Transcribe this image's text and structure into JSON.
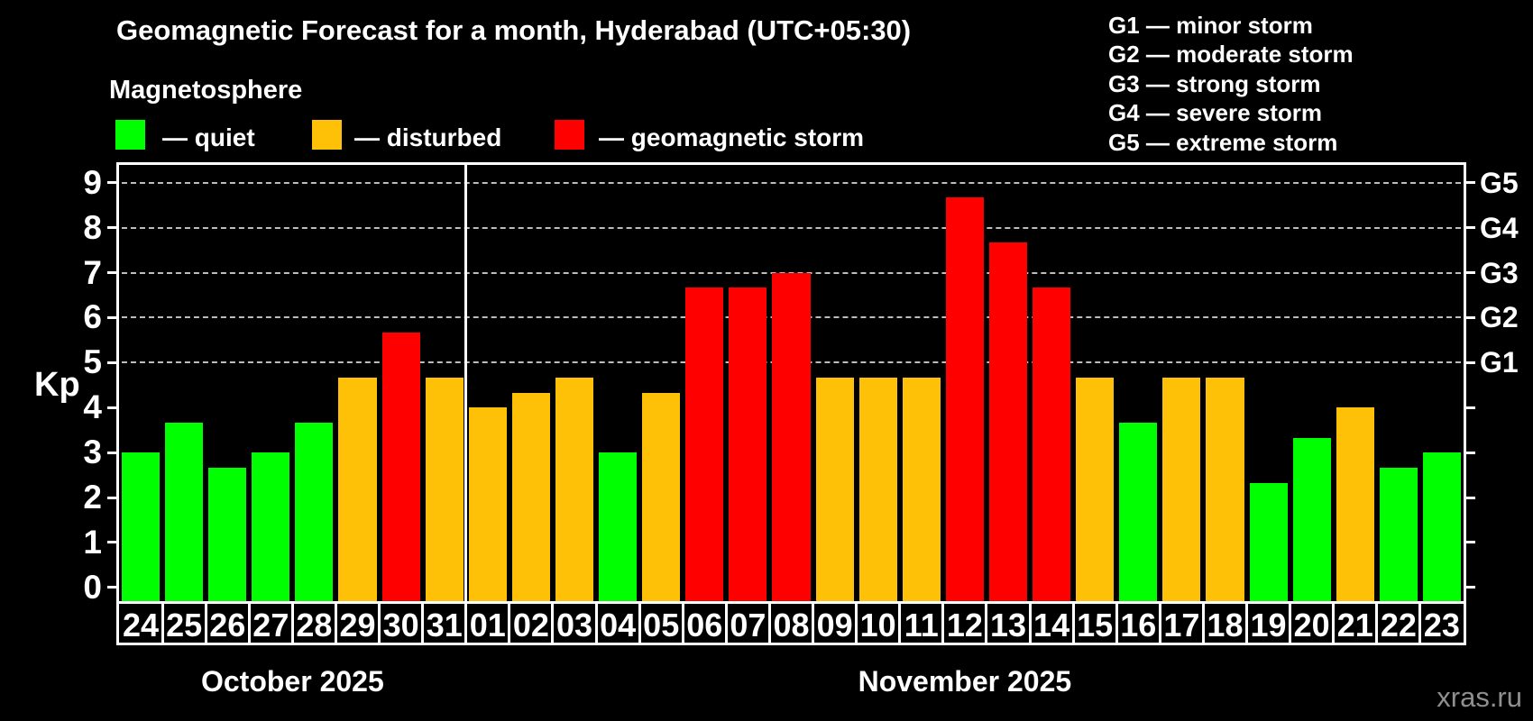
{
  "header": {
    "title": "Geomagnetic Forecast for a month, Hyderabad (UTC+05:30)",
    "subtitle": "Magnetosphere"
  },
  "legend": {
    "items": [
      {
        "label": "— quiet",
        "status": "quiet",
        "color": "#00ff00"
      },
      {
        "label": "— disturbed",
        "status": "disturbed",
        "color": "#ffc107"
      },
      {
        "label": "— geomagnetic storm",
        "status": "storm",
        "color": "#ff0000"
      }
    ]
  },
  "g_scale_legend": {
    "items": [
      {
        "label": "G1 — minor storm"
      },
      {
        "label": "G2 — moderate storm"
      },
      {
        "label": "G3 — strong storm"
      },
      {
        "label": "G4 — severe storm"
      },
      {
        "label": "G5 — extreme storm"
      }
    ]
  },
  "watermark": "xras.ru",
  "chart_data": {
    "type": "bar",
    "title": "Geomagnetic Forecast for a month, Hyderabad (UTC+05:30)",
    "ylabel": "Kp",
    "ylim": [
      0,
      9.7
    ],
    "yticks": [
      0,
      1,
      2,
      3,
      4,
      5,
      6,
      7,
      8,
      9
    ],
    "gridlines_at_kp": [
      5,
      6,
      7,
      8,
      9
    ],
    "grid": "dashed horizontal at storm levels only",
    "legend_position": "top-left",
    "right_axis_labels": [
      {
        "label": "G1",
        "kp": 5
      },
      {
        "label": "G2",
        "kp": 6
      },
      {
        "label": "G3",
        "kp": 7
      },
      {
        "label": "G4",
        "kp": 8
      },
      {
        "label": "G5",
        "kp": 9
      }
    ],
    "status_colors": {
      "quiet": "#00ff00",
      "disturbed": "#ffc107",
      "storm": "#ff0000"
    },
    "months": [
      {
        "label": "October 2025",
        "days": [
          {
            "date": "24",
            "kp": 3.0,
            "status": "quiet"
          },
          {
            "date": "25",
            "kp": 3.67,
            "status": "quiet"
          },
          {
            "date": "26",
            "kp": 2.67,
            "status": "quiet"
          },
          {
            "date": "27",
            "kp": 3.0,
            "status": "quiet"
          },
          {
            "date": "28",
            "kp": 3.67,
            "status": "quiet"
          },
          {
            "date": "29",
            "kp": 4.67,
            "status": "disturbed"
          },
          {
            "date": "30",
            "kp": 5.67,
            "status": "storm"
          },
          {
            "date": "31",
            "kp": 4.67,
            "status": "disturbed"
          }
        ]
      },
      {
        "label": "November 2025",
        "days": [
          {
            "date": "01",
            "kp": 4.0,
            "status": "disturbed"
          },
          {
            "date": "02",
            "kp": 4.33,
            "status": "disturbed"
          },
          {
            "date": "03",
            "kp": 4.67,
            "status": "disturbed"
          },
          {
            "date": "04",
            "kp": 3.0,
            "status": "quiet"
          },
          {
            "date": "05",
            "kp": 4.33,
            "status": "disturbed"
          },
          {
            "date": "06",
            "kp": 6.67,
            "status": "storm"
          },
          {
            "date": "07",
            "kp": 6.67,
            "status": "storm"
          },
          {
            "date": "08",
            "kp": 7.0,
            "status": "storm"
          },
          {
            "date": "09",
            "kp": 4.67,
            "status": "disturbed"
          },
          {
            "date": "10",
            "kp": 4.67,
            "status": "disturbed"
          },
          {
            "date": "11",
            "kp": 4.67,
            "status": "disturbed"
          },
          {
            "date": "12",
            "kp": 8.67,
            "status": "storm"
          },
          {
            "date": "13",
            "kp": 7.67,
            "status": "storm"
          },
          {
            "date": "14",
            "kp": 6.67,
            "status": "storm"
          },
          {
            "date": "15",
            "kp": 4.67,
            "status": "disturbed"
          },
          {
            "date": "16",
            "kp": 3.67,
            "status": "quiet"
          },
          {
            "date": "17",
            "kp": 4.67,
            "status": "disturbed"
          },
          {
            "date": "18",
            "kp": 4.67,
            "status": "disturbed"
          },
          {
            "date": "19",
            "kp": 2.33,
            "status": "quiet"
          },
          {
            "date": "20",
            "kp": 3.33,
            "status": "quiet"
          },
          {
            "date": "21",
            "kp": 4.0,
            "status": "disturbed"
          },
          {
            "date": "22",
            "kp": 2.67,
            "status": "quiet"
          },
          {
            "date": "23",
            "kp": 3.0,
            "status": "quiet"
          }
        ]
      }
    ]
  }
}
